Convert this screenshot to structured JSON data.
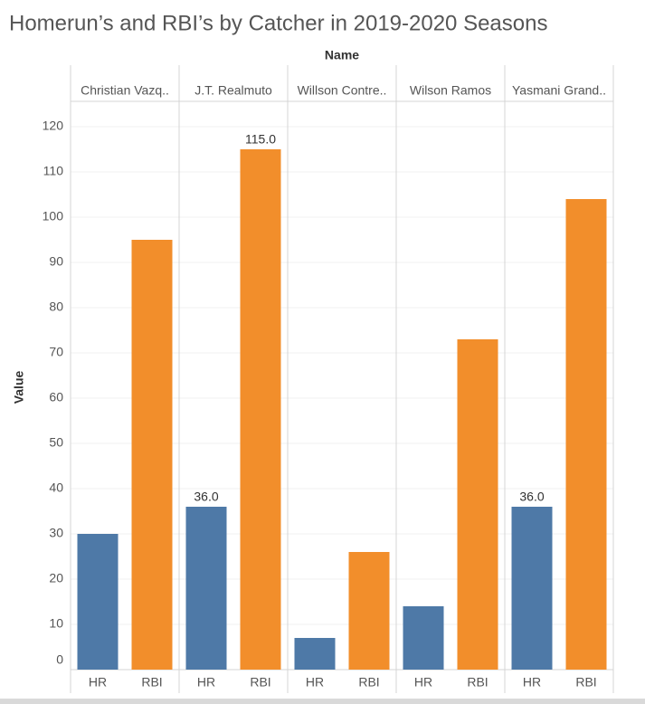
{
  "chart_data": {
    "type": "grouped-bar",
    "title": "Homerun’s and RBI’s by Catcher in 2019-2020 Seasons",
    "column_header": "Name",
    "y_label": "Value",
    "categories": [
      "Christian Vazq..",
      "J.T. Realmuto",
      "Willson Contre..",
      "Wilson Ramos",
      "Yasmani Grand.."
    ],
    "series": [
      {
        "name": "HR",
        "color": "#4e79a7",
        "values": [
          30,
          36,
          7,
          14,
          36
        ],
        "value_labels": [
          null,
          "36.0",
          null,
          null,
          "36.0"
        ]
      },
      {
        "name": "RBI",
        "color": "#f28e2b",
        "values": [
          95,
          115,
          26,
          73,
          104
        ],
        "value_labels": [
          null,
          "115.0",
          null,
          null,
          null
        ]
      }
    ],
    "ylim": [
      0,
      125
    ],
    "yticks": [
      0,
      10,
      20,
      30,
      40,
      50,
      60,
      70,
      80,
      90,
      100,
      110,
      120
    ],
    "grid": true
  }
}
